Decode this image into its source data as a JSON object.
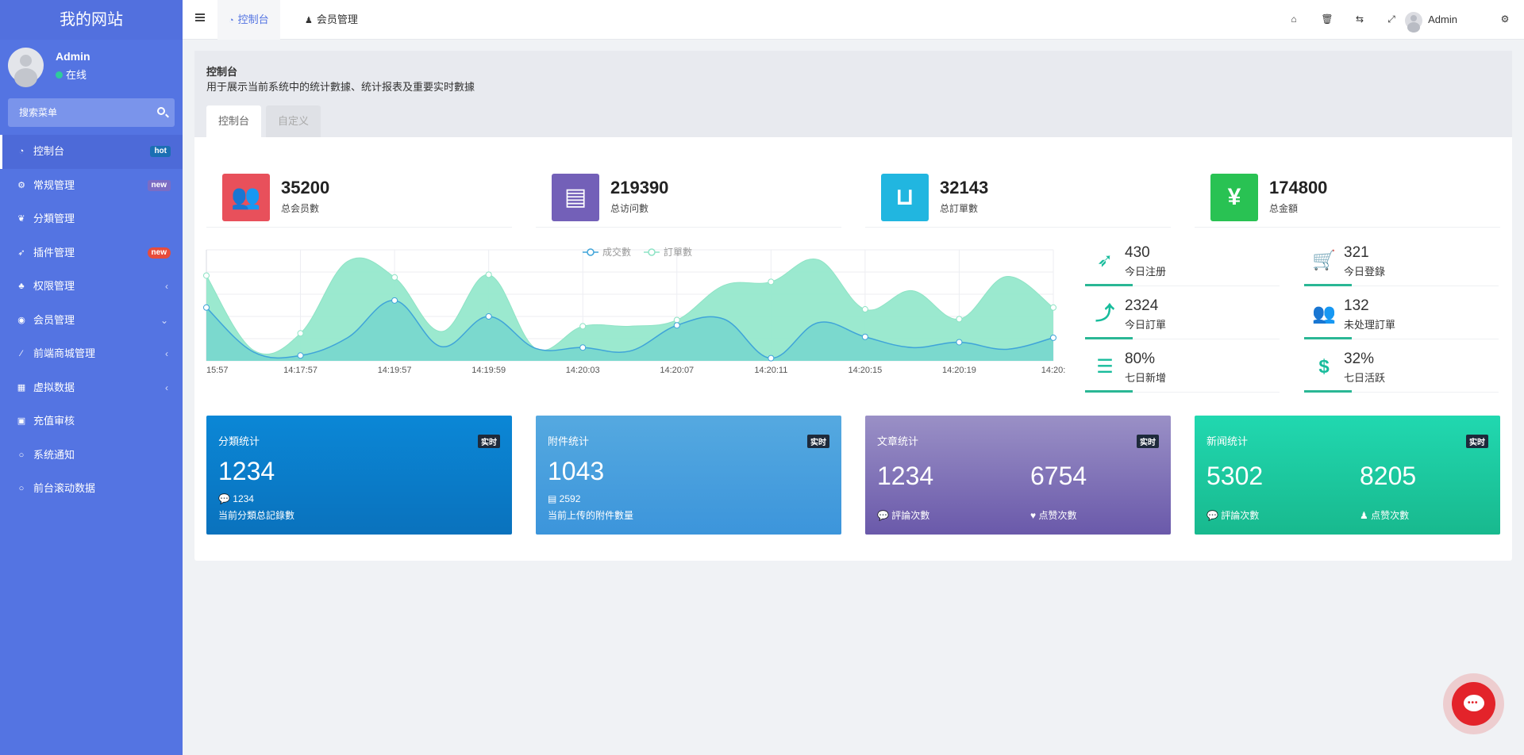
{
  "site": {
    "title": "我的网站"
  },
  "user": {
    "name": "Admin",
    "status": "在线"
  },
  "sidebar": {
    "search_placeholder": "搜索菜单",
    "items": [
      {
        "label": "控制台",
        "icon": "dashboard-icon",
        "badge": "hot",
        "badge_color": "#1b6fb3"
      },
      {
        "label": "常规管理",
        "icon": "cogs-icon",
        "badge": "new",
        "badge_color": "#7b6cc4"
      },
      {
        "label": "分類管理",
        "icon": "leaf-icon"
      },
      {
        "label": "插件管理",
        "icon": "rocket-icon",
        "badge": "new",
        "badge_color": "#e74c3c"
      },
      {
        "label": "权限管理",
        "icon": "group-icon",
        "arrow": "‹"
      },
      {
        "label": "会员管理",
        "icon": "user-circle-icon",
        "arrow": "⌄"
      },
      {
        "label": "前端商城管理",
        "icon": "magic-icon",
        "arrow": "‹"
      },
      {
        "label": "虚拟数据",
        "icon": "calendar-icon",
        "arrow": "‹"
      },
      {
        "label": "充值审核",
        "icon": "money-icon"
      },
      {
        "label": "系统通知",
        "icon": "circle-icon"
      },
      {
        "label": "前台滚动数据",
        "icon": "circle-icon"
      }
    ]
  },
  "topbar": {
    "tabs": [
      {
        "label": "控制台",
        "icon": "dashboard-icon"
      },
      {
        "label": "会员管理",
        "icon": "user-icon"
      }
    ],
    "user": "Admin"
  },
  "header": {
    "title": "控制台",
    "description": "用于展示当前系统中的统计數據、统计报表及重要实时數據",
    "tabs": [
      "控制台",
      "自定义"
    ]
  },
  "stats": [
    {
      "value": "35200",
      "label": "总会员數",
      "color": "#e8505b",
      "icon": "users-icon"
    },
    {
      "value": "219390",
      "label": "总访问數",
      "color": "#7360b8",
      "icon": "book-icon"
    },
    {
      "value": "32143",
      "label": "总訂單數",
      "color": "#21b6e0",
      "icon": "shopping-bag-icon"
    },
    {
      "value": "174800",
      "label": "总金額",
      "color": "#29c253",
      "icon": "yen-icon"
    }
  ],
  "small_stats": [
    {
      "value": "430",
      "label": "今日注册",
      "icon": "rocket-icon"
    },
    {
      "value": "321",
      "label": "今日登錄",
      "icon": "cart-icon"
    },
    {
      "value": "2324",
      "label": "今日訂單",
      "icon": "line-chart-icon"
    },
    {
      "value": "132",
      "label": "未处理訂單",
      "icon": "users-icon"
    },
    {
      "value": "80%",
      "label": "七日新增",
      "icon": "list-icon"
    },
    {
      "value": "32%",
      "label": "七日活跃",
      "icon": "dollar-icon"
    }
  ],
  "chart_data": {
    "type": "area",
    "categories": [
      "15:57",
      "",
      "14:17:57",
      "",
      "14:19:57",
      "",
      "14:19:59",
      "",
      "14:20:03",
      "",
      "14:20:07",
      "",
      "14:20:11",
      "",
      "14:20:15",
      "",
      "14:20:19",
      "",
      "14:20:"
    ],
    "series": [
      {
        "name": "成交數",
        "color": "#3fa4d9",
        "values": [
          60,
          10,
          6,
          26,
          68,
          16,
          50,
          14,
          15,
          11,
          40,
          47,
          3,
          43,
          27,
          15,
          21,
          13,
          26
        ]
      },
      {
        "name": "訂單數",
        "color": "#8ee3c5",
        "values": [
          96,
          12,
          31,
          112,
          94,
          33,
          97,
          14,
          39,
          39,
          46,
          85,
          89,
          114,
          58,
          79,
          47,
          95,
          60
        ]
      }
    ],
    "ylim": [
      0,
      125
    ],
    "legend": "top-center",
    "grid": true
  },
  "cards": [
    {
      "title": "分類统计",
      "live": "实时",
      "big": "1234",
      "sub": "1234",
      "sub_icon": "comment-icon",
      "desc": "当前分類总記錄數",
      "bg": "linear-gradient(#0b87d6,#0a72bd)"
    },
    {
      "title": "附件统计",
      "live": "实时",
      "big": "1043",
      "sub": "2592",
      "sub_icon": "files-icon",
      "desc": "当前上传的附件數量",
      "bg": "linear-gradient(#55a9e0,#3c95db)"
    },
    {
      "title": "文章统计",
      "live": "实时",
      "big": "1234",
      "big2": "6754",
      "sub": "評論次數",
      "sub2": "点赞次數",
      "sub_icon": "comment-icon",
      "sub2_icon": "heart-icon",
      "bg": "linear-gradient(#9a90c6,#6a59aa)"
    },
    {
      "title": "新闻统计",
      "live": "实时",
      "big": "5302",
      "big2": "8205",
      "sub": "評論次數",
      "sub2": "点赞次數",
      "sub_icon": "comment-icon",
      "sub2_icon": "user-icon",
      "bg": "linear-gradient(#21d8b0,#18b98e)"
    }
  ]
}
